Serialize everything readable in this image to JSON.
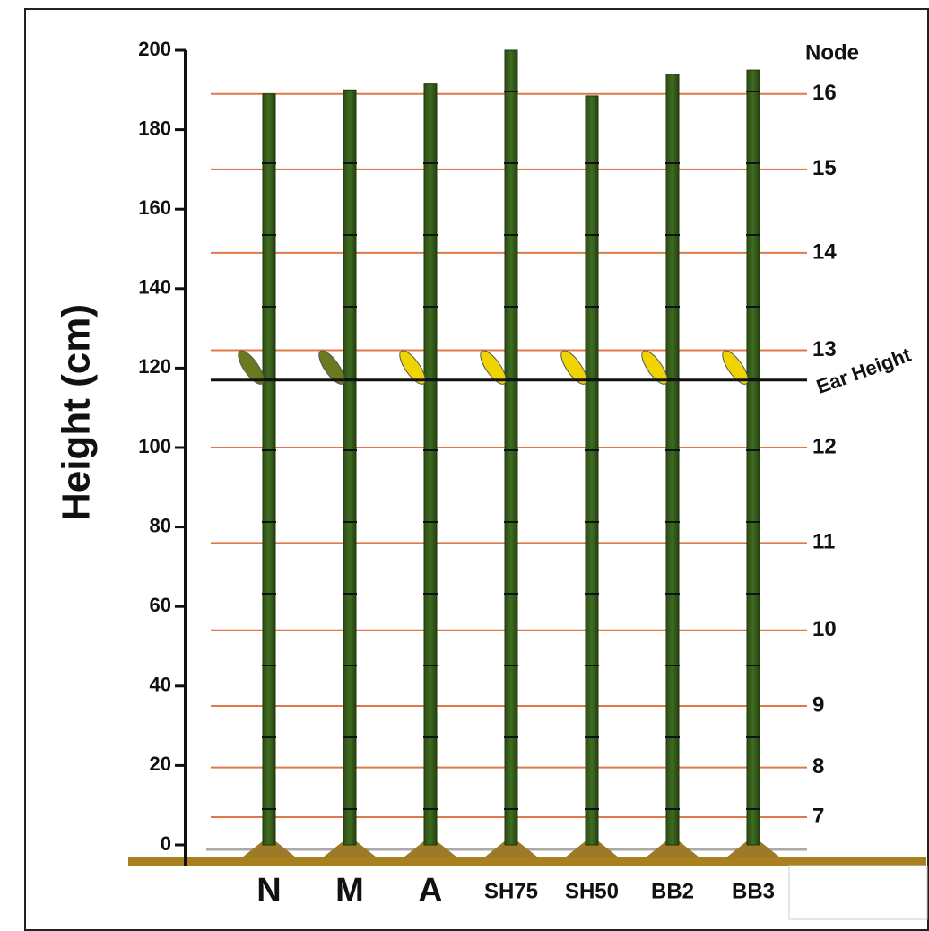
{
  "chart_data": {
    "type": "bar",
    "y_label": "Height (cm)",
    "categories": [
      "N",
      "M",
      "A",
      "SH75",
      "SH50",
      "BB2",
      "BB3"
    ],
    "values": [
      189,
      190,
      191.5,
      200,
      188.5,
      194,
      195
    ],
    "color": "#3f6b22",
    "ylim": [
      0,
      200
    ],
    "yticks": [
      0,
      20,
      40,
      60,
      80,
      100,
      120,
      140,
      160,
      180,
      200
    ],
    "node_title": "Node",
    "nodes": [
      7,
      8,
      9,
      10,
      11,
      12,
      13,
      14,
      15,
      16
    ],
    "node_heights": [
      7,
      19.5,
      35,
      54,
      76,
      100,
      124.5,
      149,
      170,
      189
    ],
    "node_color": "#e0784a",
    "ear_height": 117,
    "ear_height_label": "Ear Height"
  }
}
